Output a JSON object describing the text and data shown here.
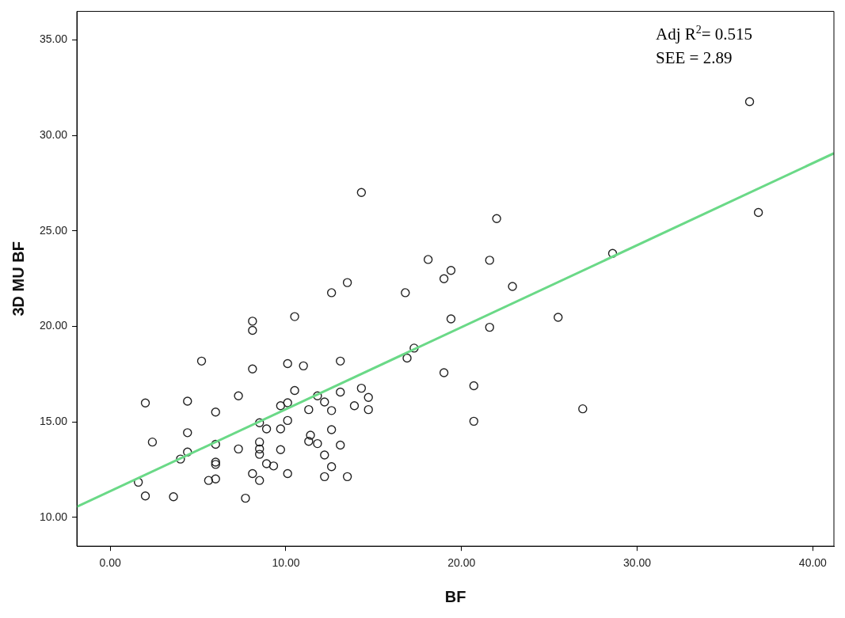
{
  "chart_data": {
    "type": "scatter",
    "xlabel": "BF",
    "ylabel": "3D MU BF",
    "xlim": [
      -1.9,
      41.2
    ],
    "ylim": [
      8.5,
      36.5
    ],
    "xticks": [
      {
        "value": 0,
        "label": "0.00"
      },
      {
        "value": 10,
        "label": "10.00"
      },
      {
        "value": 20,
        "label": "20.00"
      },
      {
        "value": 30,
        "label": "30.00"
      },
      {
        "value": 40,
        "label": "40.00"
      }
    ],
    "yticks": [
      {
        "value": 10,
        "label": "10.00"
      },
      {
        "value": 15,
        "label": "15.00"
      },
      {
        "value": 20,
        "label": "20.00"
      },
      {
        "value": 25,
        "label": "25.00"
      },
      {
        "value": 30,
        "label": "30.00"
      },
      {
        "value": 35,
        "label": "35.00"
      }
    ],
    "grid": false,
    "legend": false,
    "marker": "circle",
    "annotations": [
      "Adj R$^{2}$= 0.515",
      "SEE = 2.89"
    ],
    "series": [
      {
        "color": "#222222",
        "x": [
          1.6,
          2.0,
          3.6,
          2.0,
          2.4,
          4.0,
          4.4,
          4.4,
          4.4,
          5.2,
          5.6,
          6.0,
          6.0,
          6.0,
          6.0,
          6.0,
          7.3,
          7.3,
          7.7,
          8.1,
          8.1,
          8.1,
          8.1,
          8.5,
          8.5,
          8.5,
          8.5,
          8.5,
          8.9,
          8.9,
          9.3,
          9.7,
          9.7,
          9.7,
          10.1,
          10.1,
          10.1,
          10.1,
          10.5,
          10.5,
          11.0,
          11.3,
          11.4,
          11.3,
          11.8,
          11.8,
          12.2,
          12.2,
          12.2,
          12.6,
          12.6,
          12.6,
          12.6,
          13.1,
          13.1,
          13.1,
          13.5,
          13.5,
          13.9,
          14.3,
          14.3,
          14.7,
          14.7,
          16.8,
          16.9,
          17.3,
          18.1,
          19.0,
          19.4,
          19.0,
          19.4,
          20.7,
          20.7,
          21.6,
          21.6,
          22.0,
          22.9,
          25.5,
          26.9,
          28.6,
          36.4,
          36.9
        ],
        "values": [
          11.85,
          11.13,
          11.09,
          16.0,
          13.95,
          13.06,
          13.43,
          14.44,
          16.09,
          18.19,
          11.94,
          12.02,
          12.9,
          12.78,
          13.83,
          15.52,
          16.37,
          13.59,
          11.01,
          20.28,
          19.8,
          17.78,
          12.3,
          11.94,
          14.96,
          13.95,
          13.59,
          13.31,
          14.64,
          12.82,
          12.7,
          14.64,
          13.55,
          15.85,
          18.06,
          16.01,
          15.08,
          12.3,
          20.52,
          16.65,
          17.94,
          15.65,
          14.31,
          13.99,
          16.37,
          13.87,
          16.05,
          13.27,
          12.14,
          21.77,
          15.6,
          14.6,
          12.66,
          18.19,
          16.57,
          13.79,
          22.3,
          12.14,
          15.85,
          27.02,
          16.77,
          16.29,
          15.65,
          21.77,
          18.35,
          18.87,
          23.51,
          22.5,
          22.94,
          17.58,
          20.4,
          16.9,
          15.04,
          23.47,
          19.96,
          25.65,
          22.1,
          20.48,
          15.69,
          23.83,
          31.77,
          25.97
        ]
      },
      {
        "type": "line",
        "color": "#6ad987",
        "x": [
          -1.9,
          41.2
        ],
        "values": [
          10.56,
          29.07
        ],
        "marker": "none",
        "line_style": "solid"
      }
    ]
  }
}
